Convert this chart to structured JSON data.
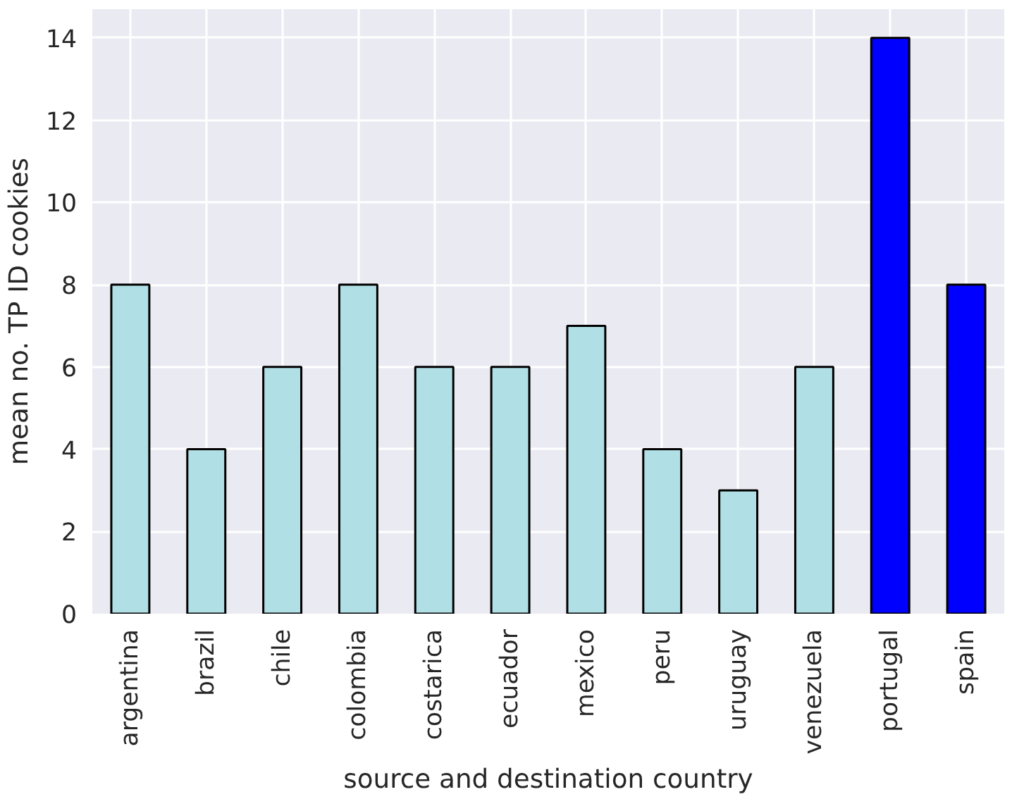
{
  "chart_data": {
    "type": "bar",
    "xlabel": "source and destination country",
    "ylabel": "mean no. TP ID cookies",
    "categories": [
      "argentina",
      "brazil",
      "chile",
      "colombia",
      "costarica",
      "ecuador",
      "mexico",
      "peru",
      "uruguay",
      "venezuela",
      "portugal",
      "spain"
    ],
    "values": [
      8,
      4,
      6,
      8,
      6,
      6,
      7,
      4,
      3,
      6,
      14,
      8
    ],
    "colors": [
      "#b0e0e6",
      "#b0e0e6",
      "#b0e0e6",
      "#b0e0e6",
      "#b0e0e6",
      "#b0e0e6",
      "#b0e0e6",
      "#b0e0e6",
      "#b0e0e6",
      "#b0e0e6",
      "#0000ff",
      "#0000ff"
    ],
    "ylim": [
      0,
      14.7
    ],
    "yticks": [
      0,
      2,
      4,
      6,
      8,
      10,
      12,
      14
    ],
    "grid": true
  }
}
